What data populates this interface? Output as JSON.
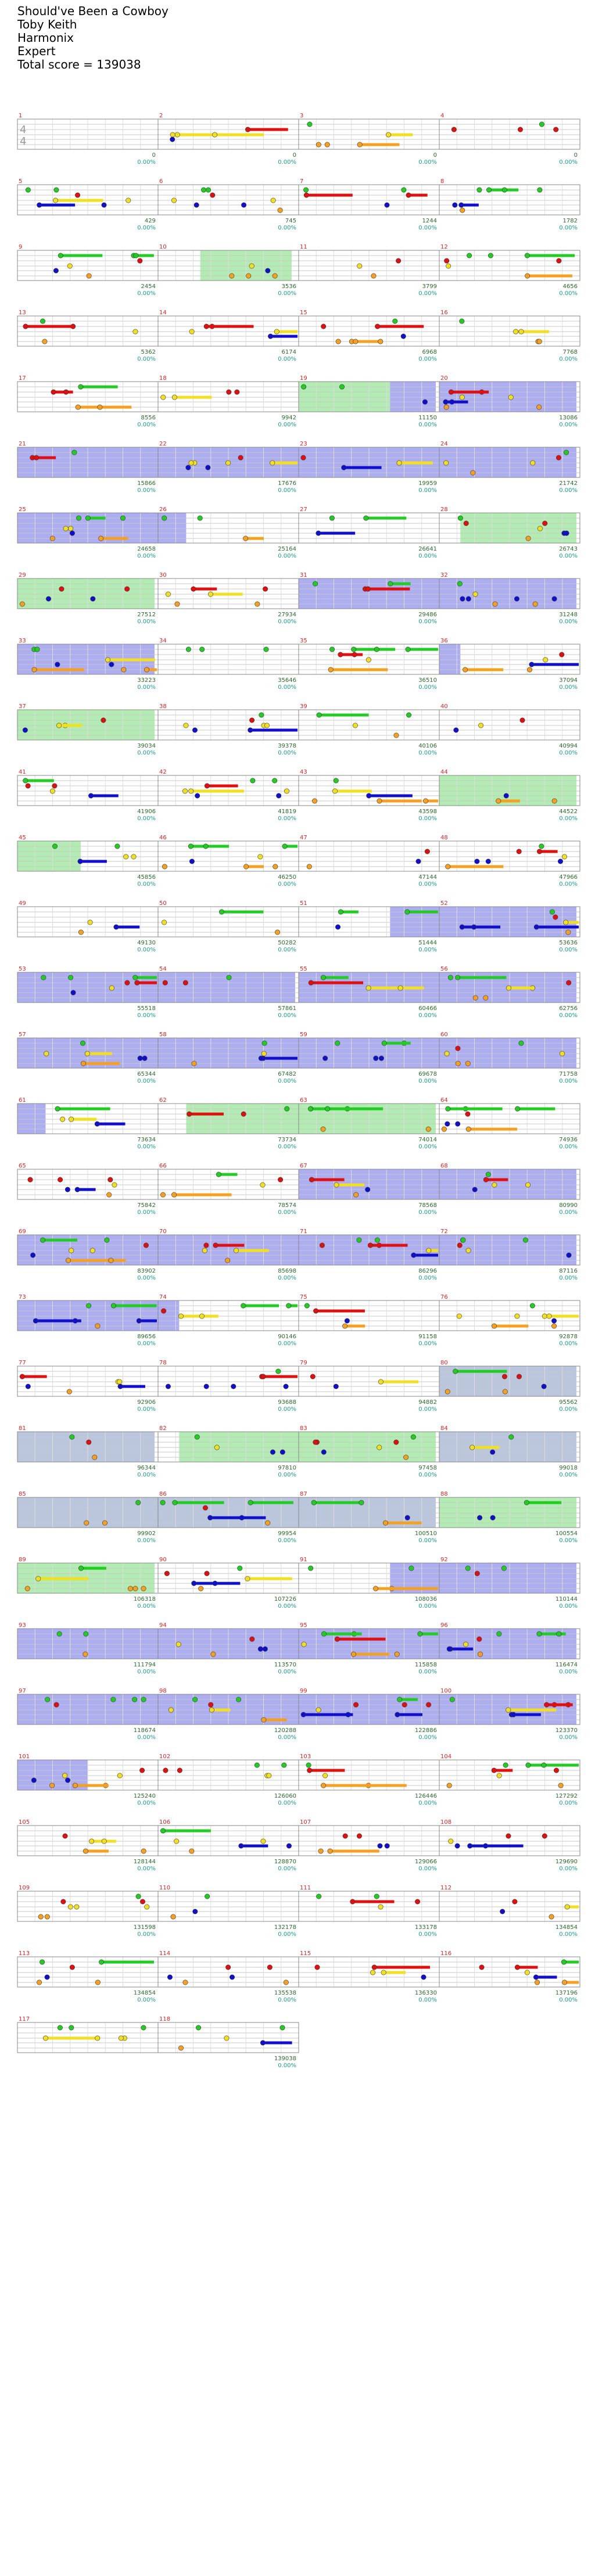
{
  "header": {
    "song": "Should've Been a Cowboy",
    "artist": "Toby Keith",
    "game": "Harmonix",
    "difficulty": "Expert",
    "total_score": "Total score = 139038"
  },
  "time_signature": {
    "top": "4",
    "bottom": "4"
  },
  "colors": {
    "green": "#22cc22",
    "red": "#e01010",
    "yellow": "#f2e020",
    "blue": "#1010cc",
    "orange": "#f5a020",
    "overdrive": "#6a6ae6",
    "solo": "#7ee07e",
    "bre": "#8aa0c8"
  },
  "measures": [
    {
      "n": 1,
      "score": "0",
      "pct": "0.00%"
    },
    {
      "n": 2,
      "score": "0",
      "pct": "0.00%"
    },
    {
      "n": 3,
      "score": "0",
      "pct": "0.00%"
    },
    {
      "n": 4,
      "score": "0",
      "pct": "0.00%"
    },
    {
      "n": 5,
      "score": "429",
      "pct": "0.00%"
    },
    {
      "n": 6,
      "score": "745",
      "pct": "0.00%"
    },
    {
      "n": 7,
      "score": "1244",
      "pct": "0.00%"
    },
    {
      "n": 8,
      "score": "1782",
      "pct": "0.00%"
    },
    {
      "n": 9,
      "score": "2454",
      "pct": "0.00%"
    },
    {
      "n": 10,
      "score": "3536",
      "pct": "0.00%"
    },
    {
      "n": 11,
      "score": "3799",
      "pct": "0.00%"
    },
    {
      "n": 12,
      "score": "4656",
      "pct": "0.00%"
    },
    {
      "n": 13,
      "score": "5362",
      "pct": "0.00%"
    },
    {
      "n": 14,
      "score": "6174",
      "pct": "0.00%"
    },
    {
      "n": 15,
      "score": "6968",
      "pct": "0.00%"
    },
    {
      "n": 16,
      "score": "7768",
      "pct": "0.00%"
    },
    {
      "n": 17,
      "score": "8556",
      "pct": "0.00%"
    },
    {
      "n": 18,
      "score": "9942",
      "pct": "0.00%"
    },
    {
      "n": 19,
      "score": "11150",
      "pct": "0.00%"
    },
    {
      "n": 20,
      "score": "13086",
      "pct": "0.00%"
    },
    {
      "n": 21,
      "score": "15866",
      "pct": "0.00%"
    },
    {
      "n": 22,
      "score": "17676",
      "pct": "0.00%"
    },
    {
      "n": 23,
      "score": "19959",
      "pct": "0.00%"
    },
    {
      "n": 24,
      "score": "21742",
      "pct": "0.00%"
    },
    {
      "n": 25,
      "score": "24658",
      "pct": "0.00%"
    },
    {
      "n": 26,
      "score": "25164",
      "pct": "0.00%"
    },
    {
      "n": 27,
      "score": "26641",
      "pct": "0.00%"
    },
    {
      "n": 28,
      "score": "26743",
      "pct": "0.00%"
    },
    {
      "n": 29,
      "score": "27512",
      "pct": "0.00%"
    },
    {
      "n": 30,
      "score": "27934",
      "pct": "0.00%"
    },
    {
      "n": 31,
      "score": "29486",
      "pct": "0.00%"
    },
    {
      "n": 32,
      "score": "31248",
      "pct": "0.00%"
    },
    {
      "n": 33,
      "score": "33223",
      "pct": "0.00%"
    },
    {
      "n": 34,
      "score": "35646",
      "pct": "0.00%"
    },
    {
      "n": 35,
      "score": "36510",
      "pct": "0.00%"
    },
    {
      "n": 36,
      "score": "37094",
      "pct": "0.00%"
    },
    {
      "n": 37,
      "score": "39034",
      "pct": "0.00%"
    },
    {
      "n": 38,
      "score": "39378",
      "pct": "0.00%"
    },
    {
      "n": 39,
      "score": "40106",
      "pct": "0.00%"
    },
    {
      "n": 40,
      "score": "40994",
      "pct": "0.00%"
    },
    {
      "n": 41,
      "score": "41906",
      "pct": "0.00%"
    },
    {
      "n": 42,
      "score": "41819",
      "pct": "0.00%"
    },
    {
      "n": 43,
      "score": "43598",
      "pct": "0.00%"
    },
    {
      "n": 44,
      "score": "44522",
      "pct": "0.00%"
    },
    {
      "n": 45,
      "score": "45856",
      "pct": "0.00%"
    },
    {
      "n": 46,
      "score": "46250",
      "pct": "0.00%"
    },
    {
      "n": 47,
      "score": "47144",
      "pct": "0.00%"
    },
    {
      "n": 48,
      "score": "47966",
      "pct": "0.00%"
    },
    {
      "n": 49,
      "score": "49130",
      "pct": "0.00%"
    },
    {
      "n": 50,
      "score": "50282",
      "pct": "0.00%"
    },
    {
      "n": 51,
      "score": "51444",
      "pct": "0.00%"
    },
    {
      "n": 52,
      "score": "53636",
      "pct": "0.00%"
    },
    {
      "n": 53,
      "score": "55518",
      "pct": "0.00%"
    },
    {
      "n": 54,
      "score": "57861",
      "pct": "0.00%"
    },
    {
      "n": 55,
      "score": "60466",
      "pct": "0.00%"
    },
    {
      "n": 56,
      "score": "62756",
      "pct": "0.00%"
    },
    {
      "n": 57,
      "score": "65344",
      "pct": "0.00%"
    },
    {
      "n": 58,
      "score": "67482",
      "pct": "0.00%"
    },
    {
      "n": 59,
      "score": "69678",
      "pct": "0.00%"
    },
    {
      "n": 60,
      "score": "71758",
      "pct": "0.00%"
    },
    {
      "n": 61,
      "score": "73634",
      "pct": "0.00%"
    },
    {
      "n": 62,
      "score": "73734",
      "pct": "0.00%"
    },
    {
      "n": 63,
      "score": "74014",
      "pct": "0.00%"
    },
    {
      "n": 64,
      "score": "74936",
      "pct": "0.00%"
    },
    {
      "n": 65,
      "score": "75842",
      "pct": "0.00%"
    },
    {
      "n": 66,
      "score": "78574",
      "pct": "0.00%"
    },
    {
      "n": 67,
      "score": "78568",
      "pct": "0.00%"
    },
    {
      "n": 68,
      "score": "80990",
      "pct": "0.00%"
    },
    {
      "n": 69,
      "score": "83902",
      "pct": "0.00%"
    },
    {
      "n": 70,
      "score": "85698",
      "pct": "0.00%"
    },
    {
      "n": 71,
      "score": "86296",
      "pct": "0.00%"
    },
    {
      "n": 72,
      "score": "87116",
      "pct": "0.00%"
    },
    {
      "n": 73,
      "score": "89656",
      "pct": "0.00%"
    },
    {
      "n": 74,
      "score": "90146",
      "pct": "0.00%"
    },
    {
      "n": 75,
      "score": "91158",
      "pct": "0.00%"
    },
    {
      "n": 76,
      "score": "92878",
      "pct": "0.00%"
    },
    {
      "n": 77,
      "score": "92906",
      "pct": "0.00%"
    },
    {
      "n": 78,
      "score": "93688",
      "pct": "0.00%"
    },
    {
      "n": 79,
      "score": "94882",
      "pct": "0.00%"
    },
    {
      "n": 80,
      "score": "95562",
      "pct": "0.00%"
    },
    {
      "n": 81,
      "score": "96344",
      "pct": "0.00%"
    },
    {
      "n": 82,
      "score": "97810",
      "pct": "0.00%"
    },
    {
      "n": 83,
      "score": "97458",
      "pct": "0.00%"
    },
    {
      "n": 84,
      "score": "99018",
      "pct": "0.00%"
    },
    {
      "n": 85,
      "score": "99902",
      "pct": "0.00%"
    },
    {
      "n": 86,
      "score": "99954",
      "pct": "0.00%"
    },
    {
      "n": 87,
      "score": "100510",
      "pct": "0.00%"
    },
    {
      "n": 88,
      "score": "100554",
      "pct": "0.00%"
    },
    {
      "n": 89,
      "score": "106318",
      "pct": "0.00%"
    },
    {
      "n": 90,
      "score": "107226",
      "pct": "0.00%"
    },
    {
      "n": 91,
      "score": "108036",
      "pct": "0.00%"
    },
    {
      "n": 92,
      "score": "110144",
      "pct": "0.00%"
    },
    {
      "n": 93,
      "score": "111794",
      "pct": "0.00%"
    },
    {
      "n": 94,
      "score": "113570",
      "pct": "0.00%"
    },
    {
      "n": 95,
      "score": "115858",
      "pct": "0.00%"
    },
    {
      "n": 96,
      "score": "116474",
      "pct": "0.00%"
    },
    {
      "n": 97,
      "score": "118674",
      "pct": "0.00%"
    },
    {
      "n": 98,
      "score": "120288",
      "pct": "0.00%"
    },
    {
      "n": 99,
      "score": "122886",
      "pct": "0.00%"
    },
    {
      "n": 100,
      "score": "123370",
      "pct": "0.00%"
    },
    {
      "n": 101,
      "score": "125240",
      "pct": "0.00%"
    },
    {
      "n": 102,
      "score": "126060",
      "pct": "0.00%"
    },
    {
      "n": 103,
      "score": "126446",
      "pct": "0.00%"
    },
    {
      "n": 104,
      "score": "127292",
      "pct": "0.00%"
    },
    {
      "n": 105,
      "score": "128144",
      "pct": "0.00%"
    },
    {
      "n": 106,
      "score": "128870",
      "pct": "0.00%"
    },
    {
      "n": 107,
      "score": "129066",
      "pct": "0.00%"
    },
    {
      "n": 108,
      "score": "129690",
      "pct": "0.00%"
    },
    {
      "n": 109,
      "score": "131598",
      "pct": "0.00%"
    },
    {
      "n": 110,
      "score": "132178",
      "pct": "0.00%"
    },
    {
      "n": 111,
      "score": "133178",
      "pct": "0.00%"
    },
    {
      "n": 112,
      "score": "134854",
      "pct": "0.00%"
    },
    {
      "n": 113,
      "score": "134854",
      "pct": "0.00%"
    },
    {
      "n": 114,
      "score": "135538",
      "pct": "0.00%"
    },
    {
      "n": 115,
      "score": "136330",
      "pct": "0.00%"
    },
    {
      "n": 116,
      "score": "137196",
      "pct": "0.00%"
    },
    {
      "n": 117,
      "score": "",
      "pct": ""
    },
    {
      "n": 118,
      "score": "139038",
      "pct": "0.00%"
    }
  ]
}
